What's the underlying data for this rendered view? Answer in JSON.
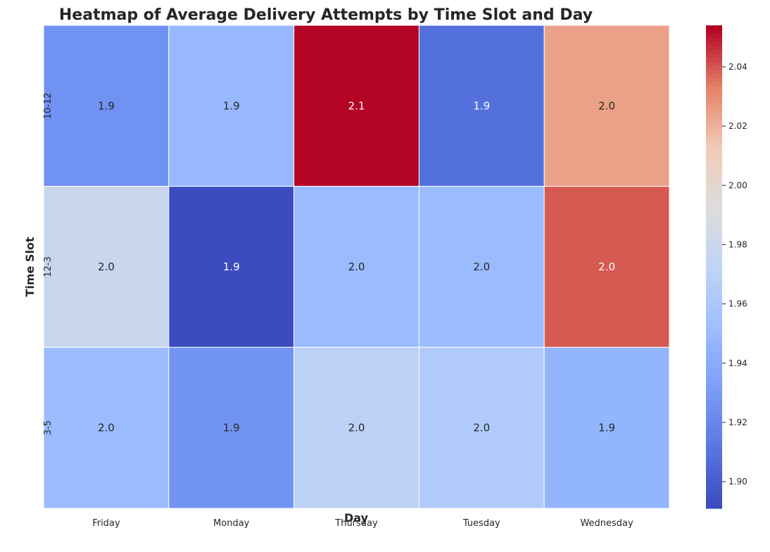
{
  "chart_data": {
    "type": "heatmap",
    "title": "Heatmap of Average Delivery Attempts by Time Slot and Day",
    "xlabel": "Day",
    "ylabel": "Time Slot",
    "x_categories": [
      "Friday",
      "Monday",
      "Thursday",
      "Tuesday",
      "Wednesday"
    ],
    "y_categories": [
      "10-12",
      "12-3",
      "3-5"
    ],
    "values": [
      [
        1.925,
        1.948,
        2.054,
        1.908,
        2.025
      ],
      [
        1.978,
        1.891,
        1.95,
        1.95,
        2.04
      ],
      [
        1.95,
        1.926,
        1.97,
        1.963,
        1.946
      ]
    ],
    "annotations": [
      [
        "1.9",
        "1.9",
        "2.1",
        "1.9",
        "2.0"
      ],
      [
        "2.0",
        "1.9",
        "2.0",
        "2.0",
        "2.0"
      ],
      [
        "2.0",
        "1.9",
        "2.0",
        "2.0",
        "1.9"
      ]
    ],
    "colormap": "coolwarm",
    "color_range": [
      1.891,
      2.054
    ],
    "colorbar_ticks": [
      "1.90",
      "1.92",
      "1.94",
      "1.96",
      "1.98",
      "2.00",
      "2.02",
      "2.04"
    ],
    "grid": false,
    "colorbar_position": "right"
  }
}
